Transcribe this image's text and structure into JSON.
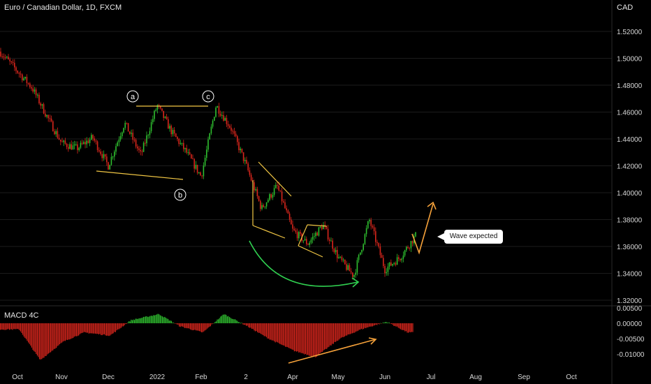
{
  "header": {
    "title": "Euro / Canadian Dollar, 1D, FXCM",
    "currency": "CAD",
    "macd_label": "MACD 4C"
  },
  "annotation": {
    "callout": "Wave expected",
    "points": [
      "a",
      "b",
      "c"
    ]
  },
  "colors": {
    "up": "#26a69a",
    "bull": "#2fbf2f",
    "bear": "#d9261c",
    "yellow": "#f2c744",
    "orange": "#f5a13a",
    "green_curve": "#30d050",
    "grid": "#1c1c1c"
  },
  "chart_data": [
    {
      "type": "candlestick",
      "title": "Euro / Canadian Dollar, 1D, FXCM",
      "ylabel": "CAD",
      "ylim": [
        1.32,
        1.54
      ],
      "yticks": [
        "1.52000",
        "1.50000",
        "1.48000",
        "1.46000",
        "1.44000",
        "1.42000",
        "1.40000",
        "1.38000",
        "1.36000",
        "1.34000",
        "1.32000"
      ],
      "xticks": [
        "Oct",
        "Nov",
        "Dec",
        "2022",
        "Feb",
        "2",
        "Apr",
        "May",
        "Jun",
        "Jul",
        "Aug",
        "Sep",
        "Oct"
      ],
      "close_path": [
        [
          "Oct",
          1.505
        ],
        [
          "Oct",
          1.478
        ],
        [
          "Oct",
          1.457
        ],
        [
          "Nov",
          1.437
        ],
        [
          "Nov",
          1.433
        ],
        [
          "Nov",
          1.441
        ],
        [
          "Dec",
          1.42
        ],
        [
          "Dec",
          1.452
        ],
        [
          "Dec",
          1.428
        ],
        [
          "2022",
          1.465
        ],
        [
          "2022",
          1.445
        ],
        [
          "2022",
          1.43
        ],
        [
          "Feb",
          1.412
        ],
        [
          "Feb",
          1.465
        ],
        [
          "Feb",
          1.448
        ],
        [
          "2",
          1.421
        ],
        [
          "2",
          1.388
        ],
        [
          "2",
          1.405
        ],
        [
          "Apr",
          1.372
        ],
        [
          "Apr",
          1.362
        ],
        [
          "Apr",
          1.376
        ],
        [
          "May",
          1.352
        ],
        [
          "May",
          1.338
        ],
        [
          "May",
          1.38
        ],
        [
          "Jun",
          1.343
        ],
        [
          "Jun",
          1.352
        ],
        [
          "Jun",
          1.368
        ]
      ],
      "annotations": [
        "a",
        "b",
        "c",
        "Wave expected"
      ]
    },
    {
      "type": "bar",
      "title": "MACD 4C",
      "ylim": [
        -0.013,
        0.0055
      ],
      "yticks": [
        "0.00500",
        "0.00000",
        "-0.00500",
        "-0.01000"
      ],
      "histogram_path": [
        [
          "Oct",
          -0.002
        ],
        [
          "Oct",
          -0.012
        ],
        [
          "Nov",
          -0.006
        ],
        [
          "Nov",
          -0.003
        ],
        [
          "Dec",
          -0.004
        ],
        [
          "Dec",
          0.001
        ],
        [
          "2022",
          0.003
        ],
        [
          "2022",
          -0.001
        ],
        [
          "Feb",
          -0.003
        ],
        [
          "Feb",
          0.003
        ],
        [
          "2",
          -0.001
        ],
        [
          "2",
          -0.005
        ],
        [
          "Apr",
          -0.009
        ],
        [
          "Apr",
          -0.011
        ],
        [
          "May",
          -0.005
        ],
        [
          "May",
          -0.002
        ],
        [
          "Jun",
          0.0005
        ],
        [
          "Jun",
          -0.003
        ]
      ]
    }
  ]
}
